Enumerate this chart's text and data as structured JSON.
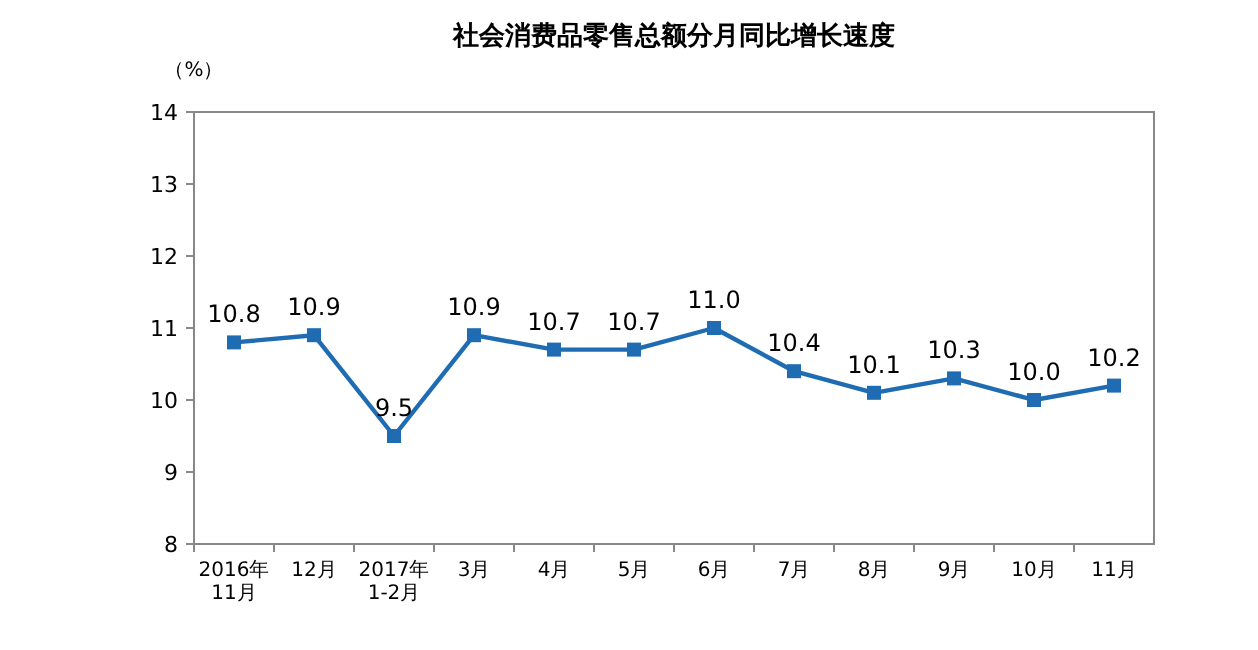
{
  "chart_data": {
    "type": "line",
    "title": "社会消费品零售总额分月同比增长速度",
    "ylabel": "（%）",
    "categories": [
      "2016年\n11月",
      "12月",
      "2017年\n1-2月",
      "3月",
      "4月",
      "5月",
      "6月",
      "7月",
      "8月",
      "9月",
      "10月",
      "11月"
    ],
    "values": [
      10.8,
      10.9,
      9.5,
      10.9,
      10.7,
      10.7,
      11.0,
      10.4,
      10.1,
      10.3,
      10.0,
      10.2
    ],
    "value_labels": [
      "10.8",
      "10.9",
      "9.5",
      "10.9",
      "10.7",
      "10.7",
      "11.0",
      "10.4",
      "10.1",
      "10.3",
      "10.0",
      "10.2"
    ],
    "color": "#1f6cb3",
    "marker": "square",
    "line_style": "solid",
    "grid": false,
    "ylim": [
      8,
      14
    ],
    "yticks": [
      8,
      9,
      10,
      11,
      12,
      13,
      14
    ]
  }
}
